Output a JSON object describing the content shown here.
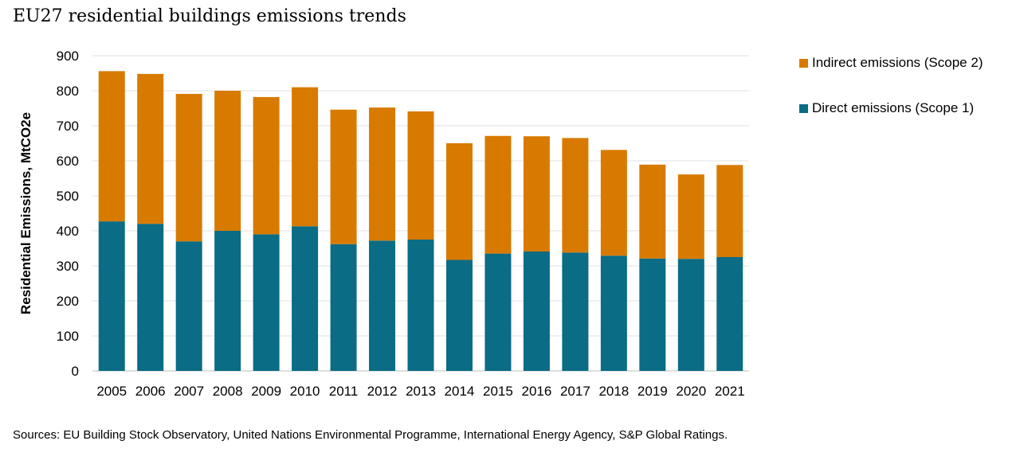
{
  "title": "EU27 residential buildings emissions trends",
  "source": "Sources: EU Building Stock Observatory, United Nations Environmental Programme, International Energy Agency, S&P Global Ratings.",
  "colors": {
    "indirect": "#D87A00",
    "direct": "#0A6C85",
    "grid": "#E2E2E2"
  },
  "chart_data": {
    "type": "bar",
    "stacked": true,
    "categories": [
      "2005",
      "2006",
      "2007",
      "2008",
      "2009",
      "2010",
      "2011",
      "2012",
      "2013",
      "2014",
      "2015",
      "2016",
      "2017",
      "2018",
      "2019",
      "2020",
      "2021"
    ],
    "series": [
      {
        "name": "Direct emissions (Scope 1)",
        "values": [
          427,
          420,
          370,
          400,
          390,
          413,
          362,
          372,
          375,
          317,
          335,
          341,
          338,
          329,
          321,
          320,
          325
        ]
      },
      {
        "name": "Indirect emissions (Scope 2)",
        "values": [
          429,
          428,
          421,
          400,
          392,
          397,
          384,
          380,
          366,
          333,
          336,
          329,
          327,
          302,
          268,
          241,
          263
        ]
      }
    ],
    "legend": [
      "Indirect emissions (Scope 2)",
      "Direct emissions (Scope 1)"
    ],
    "legend_position": "right",
    "ylabel": "Residential Emissions, MtCO2e",
    "xlabel": "",
    "ylim": [
      0,
      900
    ],
    "yticks": [
      0,
      100,
      200,
      300,
      400,
      500,
      600,
      700,
      800,
      900
    ],
    "grid": true
  }
}
